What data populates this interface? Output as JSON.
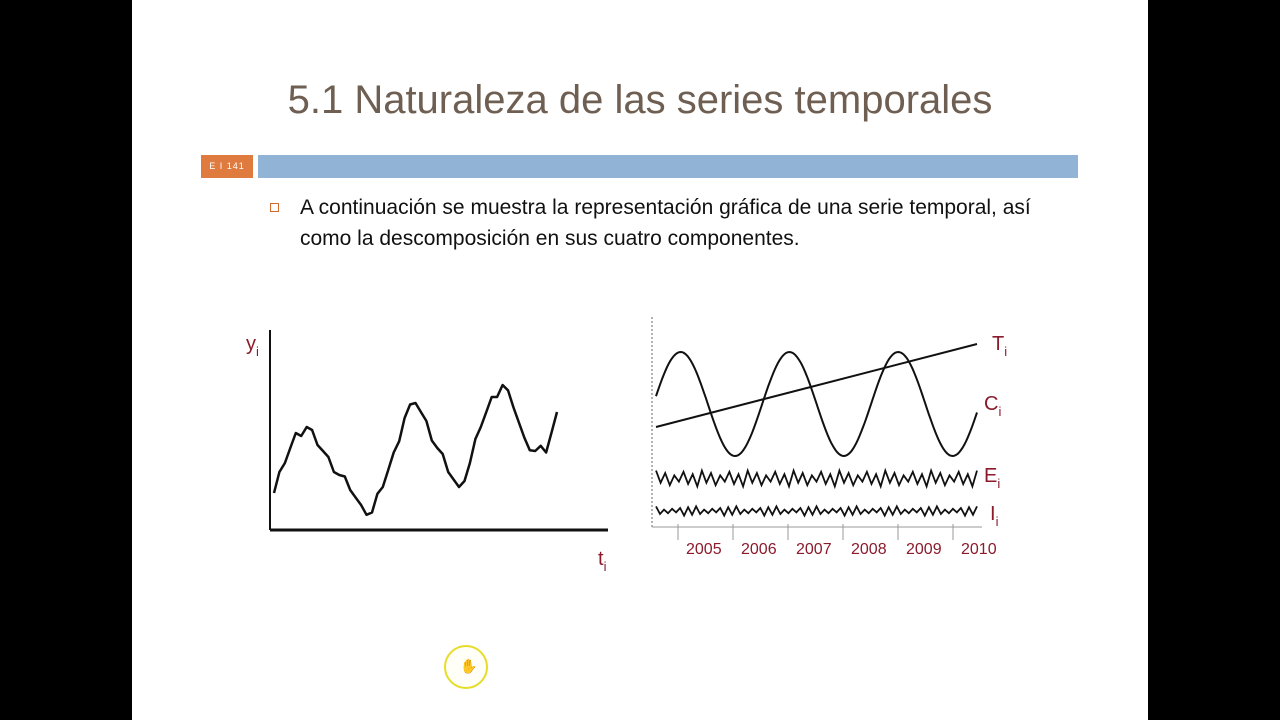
{
  "slide": {
    "title": "5.1 Naturaleza de las series temporales",
    "slide_label": "E I 141",
    "bullet": "A continuación se muestra la representación gráfica de una serie temporal, así como la descomposición en sus cuatro componentes."
  },
  "chart_data": [
    {
      "type": "line",
      "title": "",
      "ylabel": "y",
      "ylabel_sub": "i",
      "xlabel": "t",
      "xlabel_sub": "i",
      "series": [
        {
          "values": [
            0.18,
            0.38,
            0.58,
            0.62,
            0.5,
            0.42,
            0.3,
            0.2,
            0.1,
            0.05,
            0.22,
            0.45,
            0.68,
            0.78,
            0.66,
            0.48,
            0.32,
            0.22,
            0.38,
            0.62,
            0.82,
            0.9,
            0.75,
            0.55,
            0.46,
            0.45,
            0.72
          ]
        }
      ]
    },
    {
      "type": "line",
      "title": "",
      "categories": [
        "2005",
        "2006",
        "2007",
        "2008",
        "2009",
        "2010"
      ],
      "series": [
        {
          "name": "T",
          "sub": "i"
        },
        {
          "name": "C",
          "sub": "i"
        },
        {
          "name": "E",
          "sub": "i"
        },
        {
          "name": "I",
          "sub": "i"
        }
      ]
    }
  ],
  "colors": {
    "title": "#6e5f52",
    "accent_orange": "#e07b3f",
    "header_bar": "#91b4d6",
    "legend_labels": "#8b1a2b"
  },
  "icons": {
    "bullet": "hollow-square-bullet",
    "cursor": "hand-cursor-icon"
  }
}
